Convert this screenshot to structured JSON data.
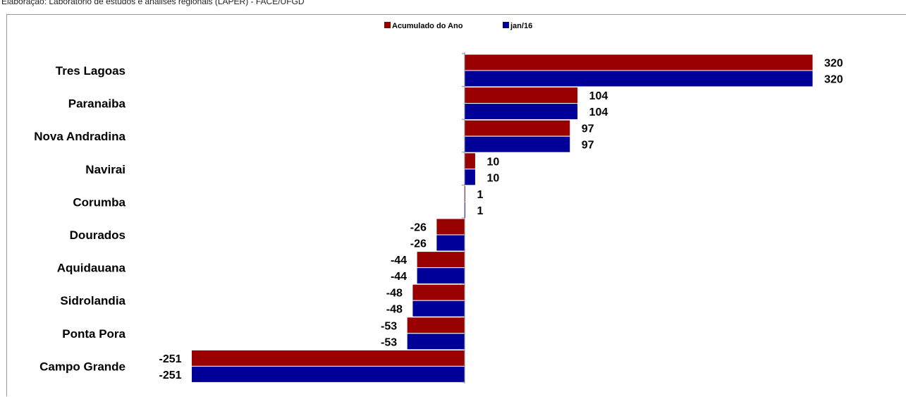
{
  "source_note": "Elaboração: Laboratório de estudos e análises regionais (LAPER) - FACE/UFGD",
  "chart_data": {
    "type": "bar",
    "orientation": "horizontal",
    "categories": [
      "Tres Lagoas",
      "Paranaiba",
      "Nova Andradina",
      "Navirai",
      "Corumba",
      "Dourados",
      "Aquidauana",
      "Sidrolandia",
      "Ponta Pora",
      "Campo Grande"
    ],
    "series": [
      {
        "name": "Acumulado do Ano",
        "color": "#990000",
        "values": [
          320,
          104,
          97,
          10,
          1,
          -26,
          -44,
          -48,
          -53,
          -251
        ]
      },
      {
        "name": "jan/16",
        "color": "#000099",
        "values": [
          320,
          104,
          97,
          10,
          1,
          -26,
          -44,
          -48,
          -53,
          -251
        ]
      }
    ],
    "xlim": [
      -251,
      320
    ],
    "grid": false,
    "legend_position": "top-center"
  }
}
